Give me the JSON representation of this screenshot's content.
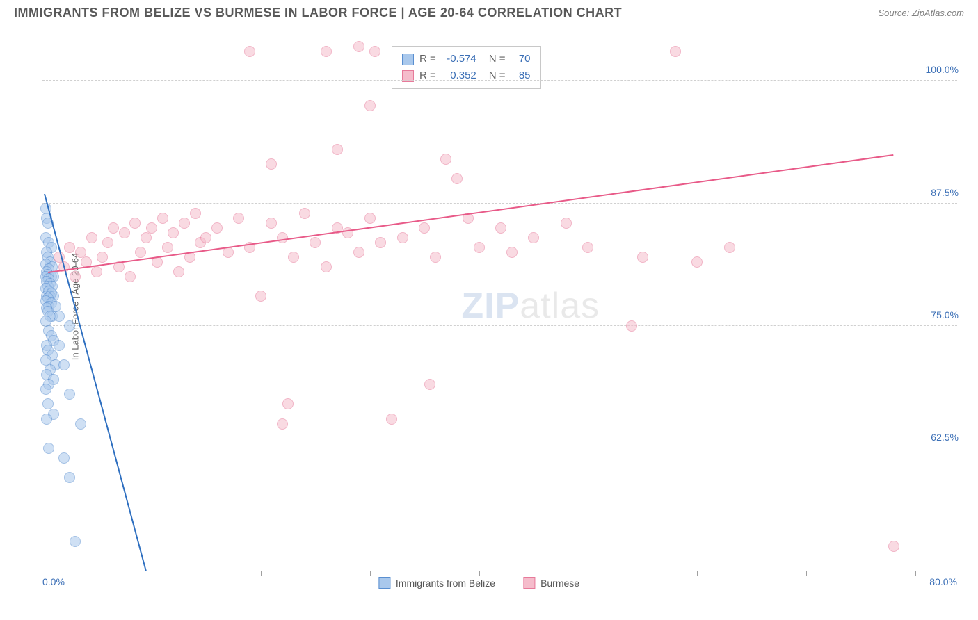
{
  "header": {
    "title": "IMMIGRANTS FROM BELIZE VS BURMESE IN LABOR FORCE | AGE 20-64 CORRELATION CHART",
    "source": "Source: ZipAtlas.com"
  },
  "chart": {
    "type": "scatter",
    "ylabel": "In Labor Force | Age 20-64",
    "xlim": [
      0,
      80
    ],
    "ylim": [
      50,
      104
    ],
    "xtick_step": 10,
    "yticks": [
      62.5,
      75.0,
      87.5,
      100.0
    ],
    "ytick_labels": [
      "62.5%",
      "75.0%",
      "87.5%",
      "100.0%"
    ],
    "xmin_label": "0.0%",
    "xmax_label": "80.0%",
    "background_color": "#ffffff",
    "grid_color": "#d0d0d0",
    "point_radius": 8,
    "point_opacity": 0.55,
    "series": [
      {
        "name": "Immigrants from Belize",
        "color_fill": "#a9c8ec",
        "color_stroke": "#5a8fd0",
        "line_color": "#2e6fc0",
        "r": -0.574,
        "n": 70,
        "trend": {
          "x1": 0.2,
          "y1": 88.5,
          "x2": 9.5,
          "y2": 50.0
        },
        "points": [
          [
            0.3,
            87.0
          ],
          [
            0.4,
            86.0
          ],
          [
            0.5,
            85.5
          ],
          [
            0.3,
            84.0
          ],
          [
            0.6,
            83.5
          ],
          [
            0.8,
            83.0
          ],
          [
            0.4,
            82.5
          ],
          [
            0.5,
            82.0
          ],
          [
            0.7,
            81.5
          ],
          [
            0.3,
            81.3
          ],
          [
            0.9,
            81.0
          ],
          [
            0.6,
            80.8
          ],
          [
            0.4,
            80.5
          ],
          [
            0.5,
            80.2
          ],
          [
            0.8,
            80.0
          ],
          [
            0.3,
            80.0
          ],
          [
            1.0,
            80.0
          ],
          [
            0.6,
            79.8
          ],
          [
            0.4,
            79.5
          ],
          [
            0.7,
            79.3
          ],
          [
            0.5,
            79.0
          ],
          [
            0.9,
            79.0
          ],
          [
            0.3,
            78.8
          ],
          [
            0.6,
            78.5
          ],
          [
            0.8,
            78.3
          ],
          [
            0.4,
            78.0
          ],
          [
            0.7,
            78.0
          ],
          [
            1.0,
            78.0
          ],
          [
            0.5,
            77.8
          ],
          [
            0.3,
            77.5
          ],
          [
            0.8,
            77.3
          ],
          [
            0.6,
            77.0
          ],
          [
            1.2,
            77.0
          ],
          [
            0.4,
            76.8
          ],
          [
            0.5,
            76.5
          ],
          [
            0.9,
            76.0
          ],
          [
            0.7,
            76.0
          ],
          [
            1.5,
            76.0
          ],
          [
            0.3,
            75.5
          ],
          [
            2.5,
            75.0
          ],
          [
            0.6,
            74.5
          ],
          [
            0.8,
            74.0
          ],
          [
            1.0,
            73.5
          ],
          [
            0.4,
            73.0
          ],
          [
            1.5,
            73.0
          ],
          [
            0.5,
            72.5
          ],
          [
            0.9,
            72.0
          ],
          [
            0.3,
            71.5
          ],
          [
            1.2,
            71.0
          ],
          [
            0.7,
            70.5
          ],
          [
            0.4,
            70.0
          ],
          [
            2.0,
            71.0
          ],
          [
            1.0,
            69.5
          ],
          [
            0.6,
            69.0
          ],
          [
            0.3,
            68.5
          ],
          [
            2.5,
            68.0
          ],
          [
            0.5,
            67.0
          ],
          [
            1.0,
            66.0
          ],
          [
            0.4,
            65.5
          ],
          [
            3.5,
            65.0
          ],
          [
            0.6,
            62.5
          ],
          [
            2.0,
            61.5
          ],
          [
            2.5,
            59.5
          ],
          [
            3.0,
            53.0
          ]
        ]
      },
      {
        "name": "Burmese",
        "color_fill": "#f5bccb",
        "color_stroke": "#e77a9a",
        "line_color": "#e85a88",
        "r": 0.352,
        "n": 85,
        "trend": {
          "x1": 0.5,
          "y1": 80.5,
          "x2": 78.0,
          "y2": 92.5
        },
        "points": [
          [
            1.5,
            82.0
          ],
          [
            2.0,
            81.0
          ],
          [
            2.5,
            83.0
          ],
          [
            3.0,
            80.0
          ],
          [
            3.5,
            82.5
          ],
          [
            4.0,
            81.5
          ],
          [
            4.5,
            84.0
          ],
          [
            5.0,
            80.5
          ],
          [
            5.5,
            82.0
          ],
          [
            6.0,
            83.5
          ],
          [
            6.5,
            85.0
          ],
          [
            7.0,
            81.0
          ],
          [
            7.5,
            84.5
          ],
          [
            8.0,
            80.0
          ],
          [
            8.5,
            85.5
          ],
          [
            9.0,
            82.5
          ],
          [
            9.5,
            84.0
          ],
          [
            10.0,
            85.0
          ],
          [
            10.5,
            81.5
          ],
          [
            11.0,
            86.0
          ],
          [
            11.5,
            83.0
          ],
          [
            12.0,
            84.5
          ],
          [
            12.5,
            80.5
          ],
          [
            13.0,
            85.5
          ],
          [
            13.5,
            82.0
          ],
          [
            14.0,
            86.5
          ],
          [
            14.5,
            83.5
          ],
          [
            15.0,
            84.0
          ],
          [
            16.0,
            85.0
          ],
          [
            17.0,
            82.5
          ],
          [
            18.0,
            86.0
          ],
          [
            19.0,
            83.0
          ],
          [
            20.0,
            78.0
          ],
          [
            21.0,
            85.5
          ],
          [
            22.0,
            84.0
          ],
          [
            23.0,
            82.0
          ],
          [
            24.0,
            86.5
          ],
          [
            25.0,
            83.5
          ],
          [
            26.0,
            81.0
          ],
          [
            27.0,
            85.0
          ],
          [
            28.0,
            84.5
          ],
          [
            29.0,
            82.5
          ],
          [
            30.0,
            86.0
          ],
          [
            19.0,
            103.0
          ],
          [
            21.0,
            91.5
          ],
          [
            26.0,
            103.0
          ],
          [
            27.0,
            93.0
          ],
          [
            29.0,
            103.5
          ],
          [
            30.5,
            103.0
          ],
          [
            30.0,
            97.5
          ],
          [
            31.0,
            83.5
          ],
          [
            32.0,
            65.5
          ],
          [
            33.0,
            84.0
          ],
          [
            35.0,
            85.0
          ],
          [
            22.0,
            65.0
          ],
          [
            22.5,
            67.0
          ],
          [
            36.0,
            82.0
          ],
          [
            37.0,
            92.0
          ],
          [
            38.0,
            90.0
          ],
          [
            39.0,
            86.0
          ],
          [
            40.0,
            83.0
          ],
          [
            35.5,
            69.0
          ],
          [
            42.0,
            85.0
          ],
          [
            43.0,
            82.5
          ],
          [
            45.0,
            84.0
          ],
          [
            48.0,
            85.5
          ],
          [
            50.0,
            83.0
          ],
          [
            54.0,
            75.0
          ],
          [
            55.0,
            82.0
          ],
          [
            58.0,
            103.0
          ],
          [
            60.0,
            81.5
          ],
          [
            63.0,
            83.0
          ],
          [
            78.0,
            52.5
          ]
        ]
      }
    ]
  },
  "legend": {
    "items": [
      {
        "label": "Immigrants from Belize",
        "series_index": 0
      },
      {
        "label": "Burmese",
        "series_index": 1
      }
    ]
  },
  "watermark": {
    "part1": "ZIP",
    "part2": "atlas"
  }
}
